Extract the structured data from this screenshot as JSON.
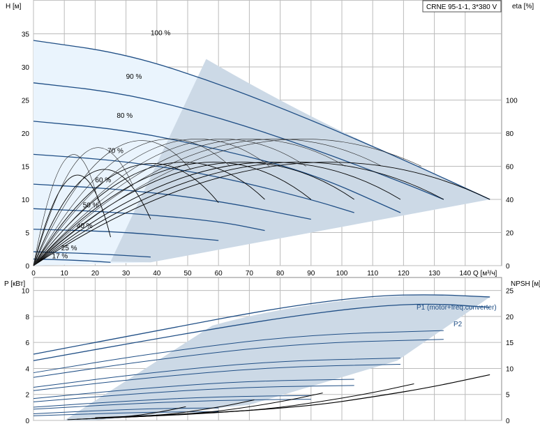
{
  "chart_data": [
    {
      "type": "line",
      "title": "CRNE 95-1-1, 3*380 V",
      "xlabel": "Q [м³/ч]",
      "ylabel": "H [м]",
      "y2label": "eta [%]",
      "xlim": [
        0,
        150
      ],
      "ylim": [
        0,
        40
      ],
      "y2lim": [
        0,
        160
      ],
      "xticks": [
        0,
        10,
        20,
        30,
        40,
        50,
        60,
        70,
        80,
        90,
        100,
        110,
        120,
        130,
        140
      ],
      "yticks": [
        0,
        5,
        10,
        15,
        20,
        25,
        30,
        35
      ],
      "y2ticks": [
        0,
        20,
        40,
        60,
        80,
        100
      ],
      "grid": true,
      "head_curves": [
        {
          "name": "100 %",
          "x": [
            0,
            30,
            60,
            90,
            120,
            148
          ],
          "y": [
            34,
            32,
            27.5,
            22,
            16,
            10
          ]
        },
        {
          "name": "90 %",
          "x": [
            0,
            30,
            60,
            90,
            120,
            133
          ],
          "y": [
            27.6,
            26,
            22.4,
            17.8,
            12.5,
            10
          ]
        },
        {
          "name": "80 %",
          "x": [
            0,
            30,
            60,
            90,
            119
          ],
          "y": [
            21.8,
            20.5,
            17.6,
            14,
            8
          ]
        },
        {
          "name": "70 %",
          "x": [
            0,
            30,
            60,
            90,
            104
          ],
          "y": [
            16.8,
            15.8,
            13.5,
            10,
            8
          ]
        },
        {
          "name": "60 %",
          "x": [
            0,
            30,
            60,
            90
          ],
          "y": [
            12.3,
            11.5,
            9.8,
            7
          ]
        },
        {
          "name": "50 %",
          "x": [
            0,
            30,
            60,
            75
          ],
          "y": [
            8.6,
            8,
            6.7,
            5.3
          ]
        },
        {
          "name": "40 %",
          "x": [
            0,
            30,
            60
          ],
          "y": [
            5.5,
            5.1,
            3.8
          ]
        },
        {
          "name": "25 %",
          "x": [
            0,
            20,
            38
          ],
          "y": [
            2.1,
            1.8,
            1.3
          ]
        },
        {
          "name": "17 %",
          "x": [
            0,
            15,
            25
          ],
          "y": [
            1,
            0.8,
            0.5
          ]
        }
      ],
      "curve_labels": [
        "100 %",
        "90 %",
        "80 %",
        "70 %",
        "60 %",
        "50 %",
        "40 %",
        "25 %",
        "17 %"
      ]
    },
    {
      "type": "line",
      "xlabel": "",
      "ylabel": "P [кВт]",
      "y2label": "NPSH [м]",
      "xlim": [
        0,
        150
      ],
      "ylim": [
        0,
        11
      ],
      "y2lim": [
        0,
        27.5
      ],
      "yticks": [
        0,
        2,
        4,
        6,
        8,
        10
      ],
      "y2ticks": [
        0,
        5,
        10,
        15,
        20,
        25
      ],
      "grid": true,
      "series": [
        {
          "name": "P1 (motor+freq.converter)",
          "x": [
            0,
            40,
            80,
            110,
            130,
            148
          ],
          "y": [
            5.1,
            6.9,
            8.7,
            9.6,
            9.7,
            9.5
          ]
        },
        {
          "name": "P2",
          "x": [
            0,
            40,
            80,
            110,
            130,
            148
          ],
          "y": [
            4.6,
            6.3,
            7.9,
            8.8,
            9,
            8.7
          ]
        }
      ],
      "npsh": {
        "x": [
          20,
          60,
          90,
          110,
          130,
          148
        ],
        "y": [
          0.5,
          1.5,
          2.8,
          4.5,
          6.5,
          8.8
        ]
      }
    }
  ]
}
